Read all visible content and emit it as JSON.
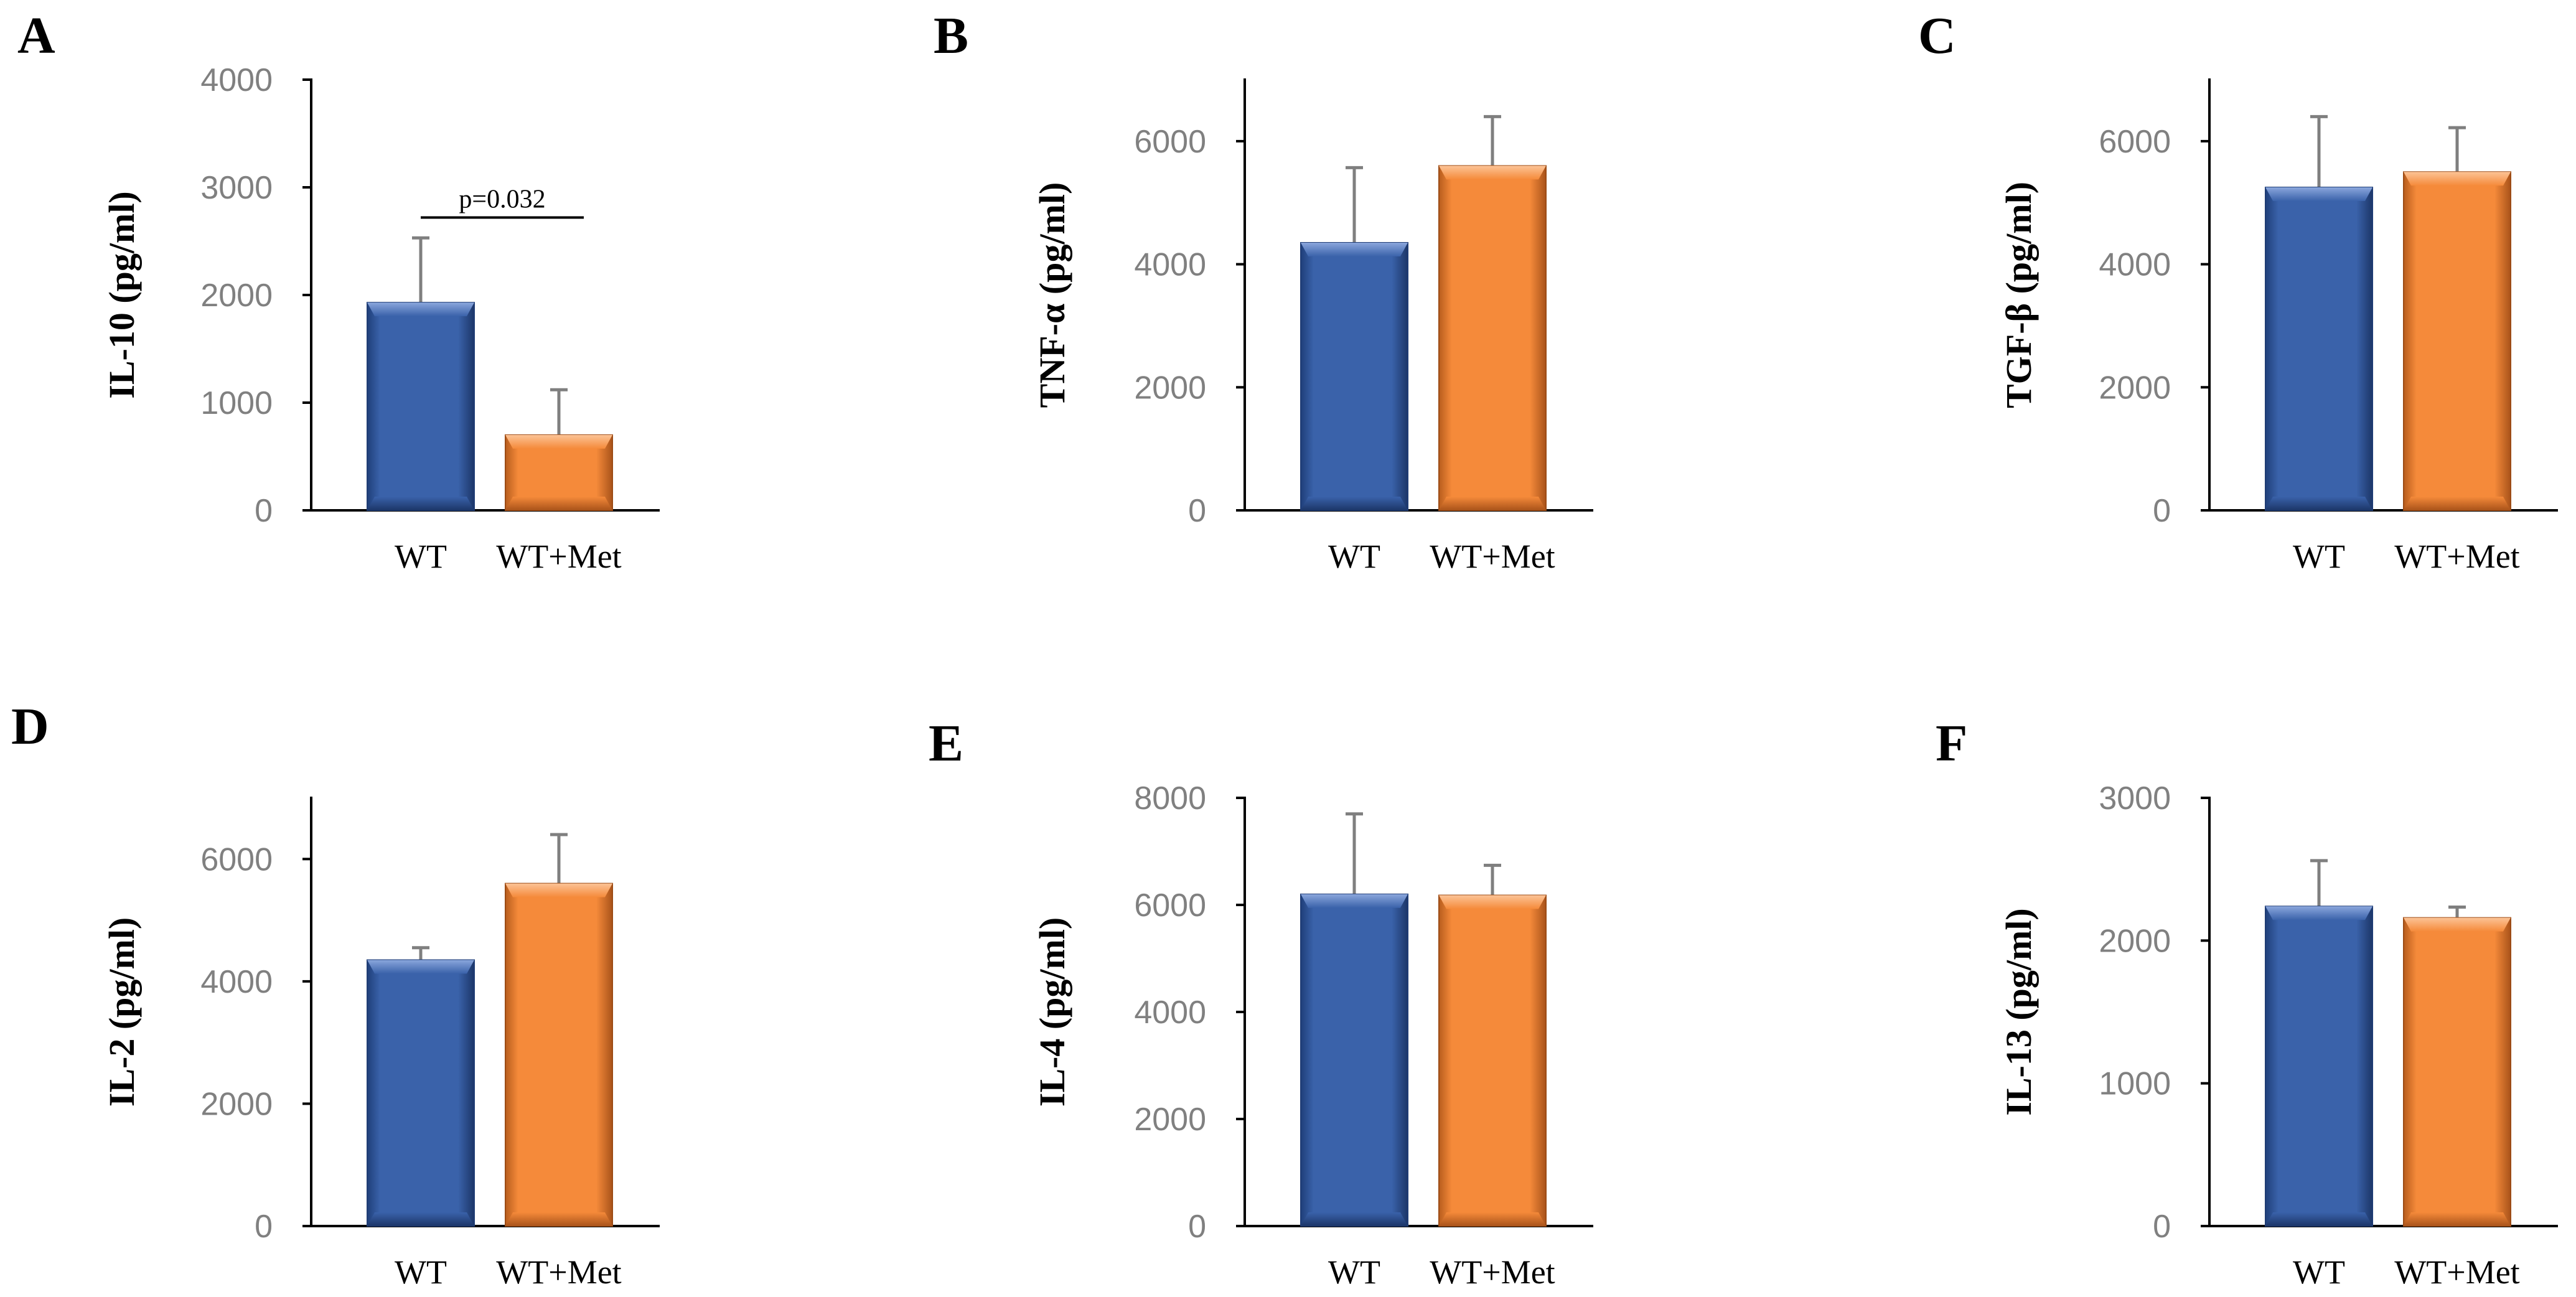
{
  "colors": {
    "wt": "#3a62aa",
    "wt_met": "#f58a3a",
    "axis": "#000000",
    "tick_text": "#808080",
    "error_bar": "#7f7f7f"
  },
  "chart_data": [
    {
      "panel": "A",
      "type": "bar",
      "ylabel": "IL-10 (pg/ml)",
      "categories": [
        "WT",
        "WT+Met"
      ],
      "values": [
        1930,
        700
      ],
      "errors": [
        600,
        420
      ],
      "ylim": [
        0,
        4000
      ],
      "yticks": [
        0,
        1000,
        2000,
        3000,
        4000
      ],
      "ytick_labels": [
        "0",
        "1000",
        "2000",
        "3000",
        "4000"
      ],
      "annotation": "p=0.032"
    },
    {
      "panel": "B",
      "type": "bar",
      "ylabel": "TNF-α (pg/ml)",
      "categories": [
        "WT",
        "WT+Met"
      ],
      "values": [
        4350,
        5600
      ],
      "errors": [
        1220,
        800
      ],
      "ylim": [
        0,
        7000
      ],
      "yticks": [
        0,
        2000,
        4000,
        6000
      ],
      "ytick_labels": [
        "0",
        "2000",
        "4000",
        "6000"
      ]
    },
    {
      "panel": "C",
      "type": "bar",
      "ylabel": "TGF-β (pg/ml)",
      "categories": [
        "WT",
        "WT+Met"
      ],
      "values": [
        5250,
        5500
      ],
      "errors": [
        1150,
        720
      ],
      "ylim": [
        0,
        7000
      ],
      "yticks": [
        0,
        2000,
        4000,
        6000
      ],
      "ytick_labels": [
        "0",
        "2000",
        "4000",
        "6000"
      ]
    },
    {
      "panel": "D",
      "type": "bar",
      "ylabel": "IL-2 (pg/ml)",
      "categories": [
        "WT",
        "WT+Met"
      ],
      "values": [
        4350,
        5600
      ],
      "errors": [
        200,
        800
      ],
      "ylim": [
        0,
        7000
      ],
      "yticks": [
        0,
        2000,
        4000,
        6000
      ],
      "ytick_labels": [
        "0",
        "2000",
        "4000",
        "6000"
      ]
    },
    {
      "panel": "E",
      "type": "bar",
      "ylabel": "IL-4 (pg/ml)",
      "categories": [
        "WT",
        "WT+Met"
      ],
      "values": [
        6200,
        6180
      ],
      "errors": [
        1500,
        560
      ],
      "ylim": [
        0,
        8000
      ],
      "yticks": [
        0,
        2000,
        4000,
        6000,
        8000
      ],
      "ytick_labels": [
        "0",
        "2000",
        "4000",
        "6000",
        "8000"
      ]
    },
    {
      "panel": "F",
      "type": "bar",
      "ylabel": "IL-13 (pg/ml)",
      "categories": [
        "WT",
        "WT+Met"
      ],
      "values": [
        2240,
        2160
      ],
      "errors": [
        320,
        75
      ],
      "ylim": [
        0,
        3000
      ],
      "yticks": [
        0,
        1000,
        2000,
        3000
      ],
      "ytick_labels": [
        "0",
        "1000",
        "2000",
        "3000"
      ]
    }
  ]
}
